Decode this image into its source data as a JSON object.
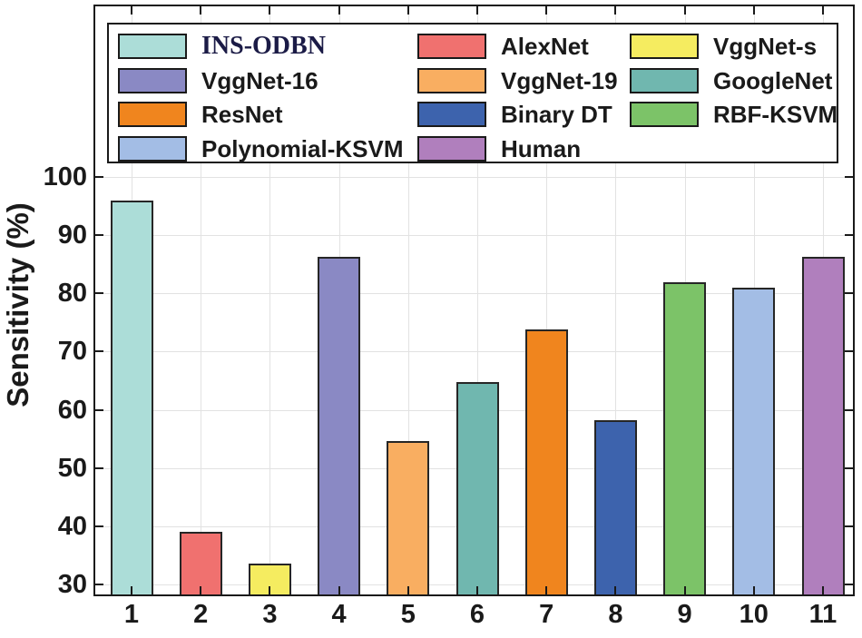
{
  "chart_data": {
    "type": "bar",
    "title": "",
    "xlabel": "",
    "ylabel": "Sensitivity (%)",
    "categories": [
      "1",
      "2",
      "3",
      "4",
      "5",
      "6",
      "7",
      "8",
      "9",
      "10",
      "11"
    ],
    "bars": [
      {
        "label": "INS-ODBN",
        "value": 96.0,
        "color": "#ACDDD8",
        "emphasis": true
      },
      {
        "label": "AlexNet",
        "value": 39.0,
        "color": "#F0716F"
      },
      {
        "label": "VggNet-s",
        "value": 33.6,
        "color": "#F5EC60"
      },
      {
        "label": "VggNet-16",
        "value": 86.3,
        "color": "#8A89C4"
      },
      {
        "label": "VggNet-19",
        "value": 54.6,
        "color": "#F9AE61"
      },
      {
        "label": "GoogleNet",
        "value": 64.8,
        "color": "#70B7AF"
      },
      {
        "label": "ResNet",
        "value": 73.8,
        "color": "#F0851E"
      },
      {
        "label": "Binary DT",
        "value": 58.2,
        "color": "#3D63AD"
      },
      {
        "label": "RBF-KSVM",
        "value": 81.9,
        "color": "#7CC368"
      },
      {
        "label": "Polynomial-KSVM",
        "value": 81.0,
        "color": "#A3BDE5"
      },
      {
        "label": "Human",
        "value": 86.3,
        "color": "#B07FBD"
      }
    ],
    "ylim": [
      28,
      100
    ],
    "yticks": [
      30,
      40,
      50,
      60,
      70,
      80,
      90,
      100
    ],
    "grid": "both",
    "legend": {
      "position": "top-inside",
      "columns": 3,
      "order": "row-major"
    }
  },
  "colors": {
    "background": "#FFFFFF",
    "axis": "#1A1A1A",
    "grid": "#E2E2E2",
    "bar_edge": "#262626",
    "text": "#1A1A1A",
    "emphasis_text": "#1B1B46",
    "legend_background": "#FFFFFF"
  }
}
